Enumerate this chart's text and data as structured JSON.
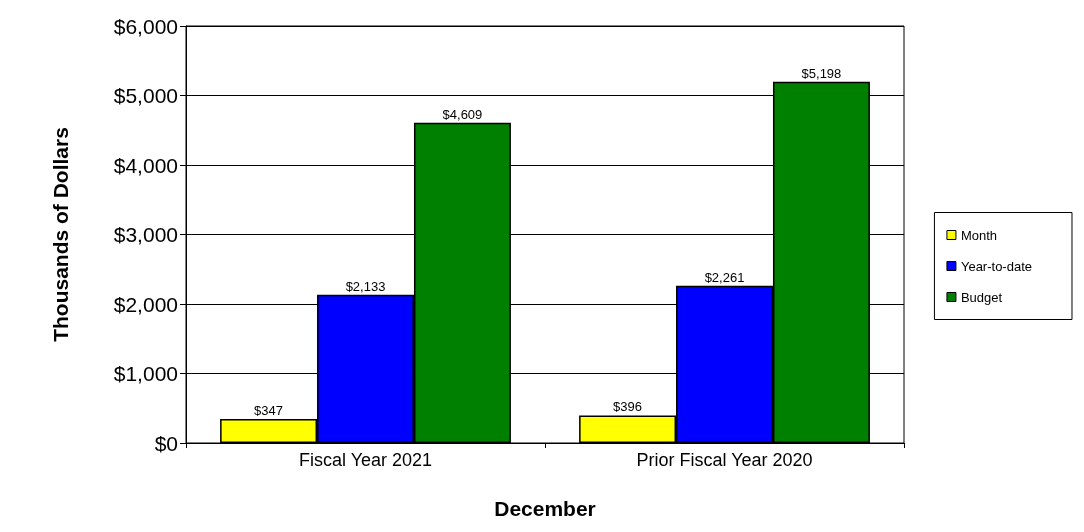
{
  "chart_data": {
    "type": "bar",
    "xlabel": "December",
    "ylabel": "Thousands of Dollars",
    "categories": [
      "Fiscal Year 2021",
      "Prior Fiscal Year 2020"
    ],
    "series": [
      {
        "name": "Month",
        "color": "#ffff00",
        "values": [
          347,
          396
        ],
        "value_labels": [
          "$347",
          "$396"
        ]
      },
      {
        "name": "Year-to-date",
        "color": "#0000ff",
        "values": [
          2133,
          2261
        ],
        "value_labels": [
          "$2,133",
          "$2,261"
        ]
      },
      {
        "name": "Budget",
        "color": "#008000",
        "values": [
          4609,
          5198
        ],
        "value_labels": [
          "$4,609",
          "$5,198"
        ]
      }
    ],
    "ylim": [
      0,
      6000
    ],
    "yticks": [
      {
        "value": 0,
        "label": "$0"
      },
      {
        "value": 1000,
        "label": "$1,000"
      },
      {
        "value": 2000,
        "label": "$2,000"
      },
      {
        "value": 3000,
        "label": "$3,000"
      },
      {
        "value": 4000,
        "label": "$4,000"
      },
      {
        "value": 5000,
        "label": "$5,000"
      },
      {
        "value": 6000,
        "label": "$6,000"
      }
    ],
    "grid": "y",
    "legend": "right"
  }
}
